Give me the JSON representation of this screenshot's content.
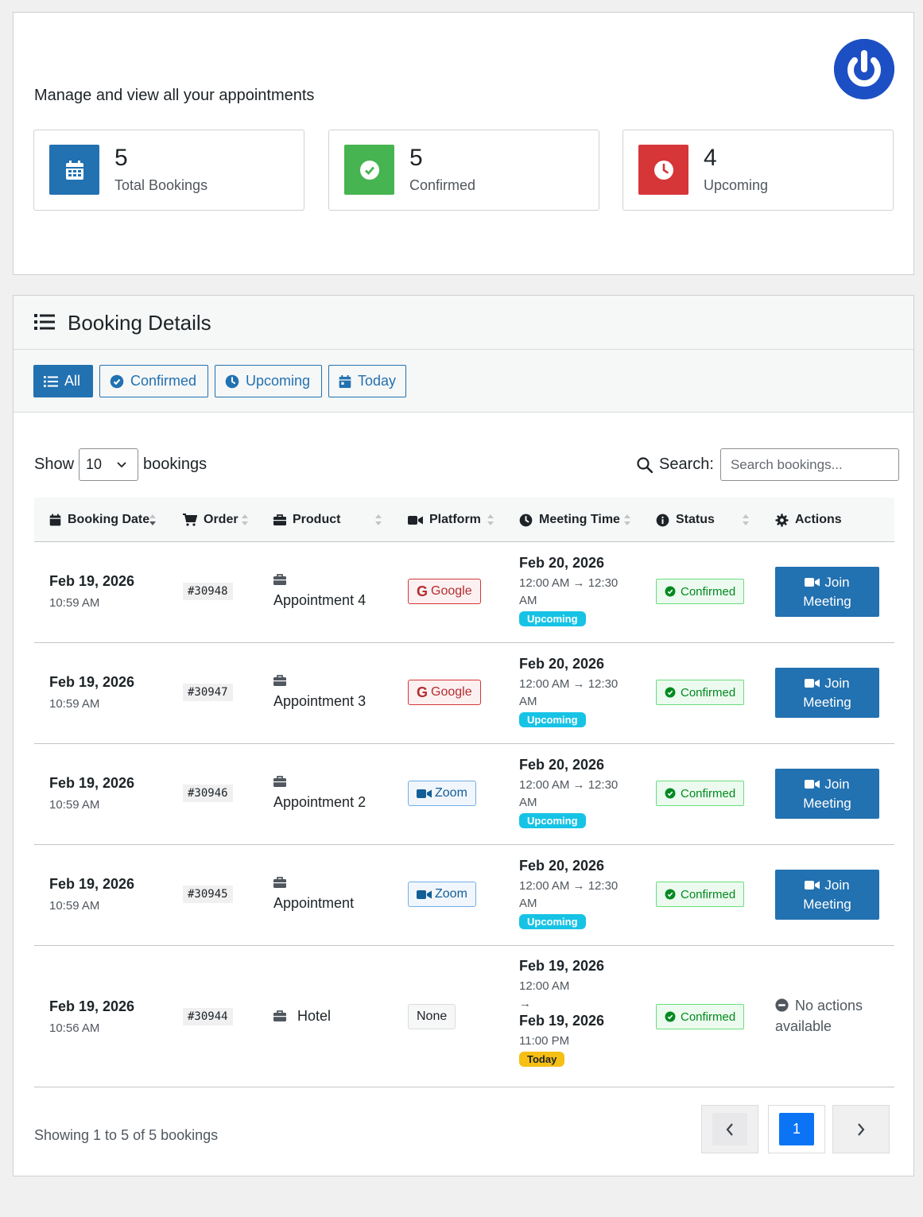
{
  "header": {
    "subtitle": "Manage and view all your appointments",
    "logo_icon": "power-icon"
  },
  "stats": [
    {
      "value": "5",
      "label": "Total Bookings",
      "icon": "calendar-icon",
      "color": "#2271b1"
    },
    {
      "value": "5",
      "label": "Confirmed",
      "icon": "check-circle-icon",
      "color": "#46b450"
    },
    {
      "value": "4",
      "label": "Upcoming",
      "icon": "clock-icon",
      "color": "#d63638"
    }
  ],
  "details": {
    "title": "Booking Details",
    "filters": [
      {
        "label": "All",
        "icon": "list-icon",
        "active": true
      },
      {
        "label": "Confirmed",
        "icon": "check-circle-icon",
        "active": false
      },
      {
        "label": "Upcoming",
        "icon": "clock-icon",
        "active": false
      },
      {
        "label": "Today",
        "icon": "calendar-icon",
        "active": false
      }
    ]
  },
  "table_controls": {
    "show_label": "Show",
    "page_length": "10",
    "bookings_label": "bookings",
    "search_label": "Search:",
    "search_placeholder": "Search bookings..."
  },
  "columns": [
    {
      "label": "Booking Date",
      "icon": "calendar-icon"
    },
    {
      "label": "Order",
      "icon": "cart-icon"
    },
    {
      "label": "Product",
      "icon": "briefcase-icon"
    },
    {
      "label": "Platform",
      "icon": "video-icon"
    },
    {
      "label": "Meeting Time",
      "icon": "clock-icon"
    },
    {
      "label": "Status",
      "icon": "info-icon"
    },
    {
      "label": "Actions",
      "icon": "gear-icon"
    }
  ],
  "rows": [
    {
      "date": "Feb 19, 2026",
      "time": "10:59 AM",
      "order": "#30948",
      "product": "Appointment 4",
      "platform": "Google",
      "mt_date": "Feb 20, 2026",
      "mt_range": "12:00 AM → 12:30 AM",
      "badge": "Upcoming",
      "status": "Confirmed",
      "action_line1": "Join",
      "action_line2": "Meeting"
    },
    {
      "date": "Feb 19, 2026",
      "time": "10:59 AM",
      "order": "#30947",
      "product": "Appointment 3",
      "platform": "Google",
      "mt_date": "Feb 20, 2026",
      "mt_range": "12:00 AM → 12:30 AM",
      "badge": "Upcoming",
      "status": "Confirmed",
      "action_line1": "Join",
      "action_line2": "Meeting"
    },
    {
      "date": "Feb 19, 2026",
      "time": "10:59 AM",
      "order": "#30946",
      "product": "Appointment 2",
      "platform": "Zoom",
      "mt_date": "Feb 20, 2026",
      "mt_range": "12:00 AM → 12:30 AM",
      "badge": "Upcoming",
      "status": "Confirmed",
      "action_line1": "Join",
      "action_line2": "Meeting"
    },
    {
      "date": "Feb 19, 2026",
      "time": "10:59 AM",
      "order": "#30945",
      "product": "Appointment",
      "platform": "Zoom",
      "mt_date": "Feb 20, 2026",
      "mt_range": "12:00 AM → 12:30 AM",
      "badge": "Upcoming",
      "status": "Confirmed",
      "action_line1": "Join",
      "action_line2": "Meeting"
    }
  ],
  "last_row": {
    "date": "Feb 19, 2026",
    "time": "10:56 AM",
    "order": "#30944",
    "product": "Hotel",
    "platform": "None",
    "mt_start_date": "Feb 19, 2026",
    "mt_start_time": "12:00 AM",
    "mt_arrow": "→",
    "mt_end_date": "Feb 19, 2026",
    "mt_end_time": "11:00 PM",
    "badge": "Today",
    "status": "Confirmed",
    "no_action_line1": "No actions",
    "no_action_line2": "available"
  },
  "footer": {
    "info": "Showing 1 to 5 of 5 bookings",
    "current_page": "1"
  }
}
